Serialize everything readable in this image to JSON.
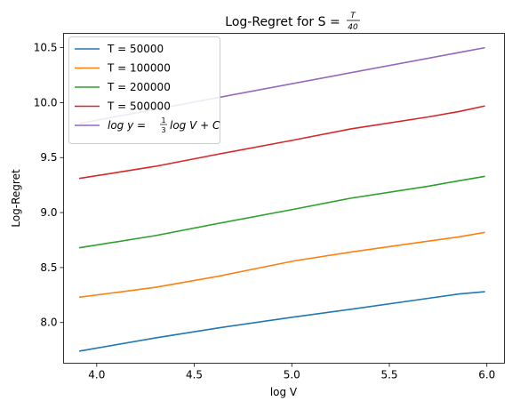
{
  "chart_data": {
    "type": "line",
    "title": {
      "prefix": "Log-Regret for S = ",
      "frac_num": "T",
      "frac_den": "40"
    },
    "xlabel": "log V",
    "ylabel": "Log-Regret",
    "xlim": [
      3.83,
      6.09
    ],
    "ylim": [
      7.63,
      10.63
    ],
    "xticks": [
      4.0,
      4.5,
      5.0,
      5.5,
      6.0
    ],
    "xtick_labels": [
      "4.0",
      "4.5",
      "5.0",
      "5.5",
      "6.0"
    ],
    "yticks": [
      8.0,
      8.5,
      9.0,
      9.5,
      10.0,
      10.5
    ],
    "ytick_labels": [
      "8.0",
      "8.5",
      "9.0",
      "9.5",
      "10.0",
      "10.5"
    ],
    "grid": false,
    "legend_position": "upper-left",
    "x": [
      3.91,
      4.3,
      4.62,
      5.01,
      5.3,
      5.7,
      5.86,
      5.99
    ],
    "series": [
      {
        "name": "T = 50000",
        "color": "#1f77b4",
        "values": [
          7.74,
          7.86,
          7.95,
          8.05,
          8.12,
          8.22,
          8.26,
          8.28
        ]
      },
      {
        "name": "T = 100000",
        "color": "#ff7f0e",
        "values": [
          8.23,
          8.32,
          8.42,
          8.56,
          8.64,
          8.74,
          8.78,
          8.82
        ]
      },
      {
        "name": "T = 200000",
        "color": "#2ca02c",
        "values": [
          8.68,
          8.79,
          8.9,
          9.03,
          9.13,
          9.24,
          9.29,
          9.33
        ]
      },
      {
        "name": "T = 500000",
        "color": "#d62728",
        "values": [
          9.31,
          9.42,
          9.53,
          9.66,
          9.76,
          9.87,
          9.92,
          9.97
        ]
      }
    ],
    "reference_line": {
      "color": "#9467bd",
      "label": {
        "main": "log y = ",
        "frac_num": "1",
        "frac_den": "3",
        "rest": "log V + C"
      },
      "x": [
        3.91,
        5.99
      ],
      "values": [
        9.81,
        10.5
      ]
    }
  }
}
